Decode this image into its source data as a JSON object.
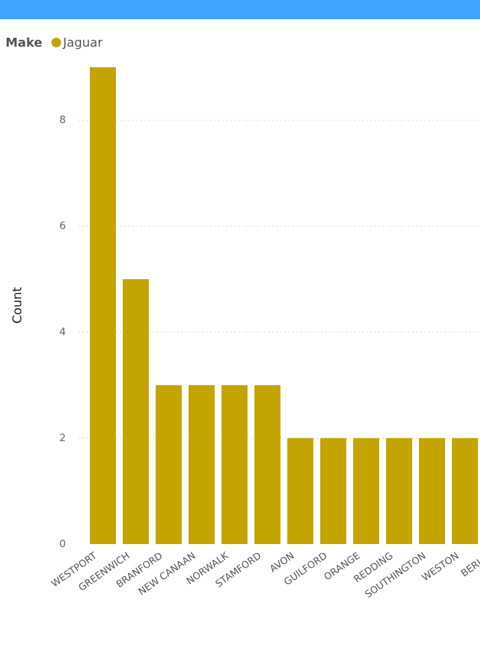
{
  "chart_data": {
    "type": "bar",
    "legend_title": "Make",
    "y_label": "Count",
    "categories": [
      "WESTPORT",
      "GREENWICH",
      "BRANFORD",
      "NEW CANAAN",
      "NORWALK",
      "STAMFORD",
      "AVON",
      "GUILFORD",
      "ORANGE",
      "REDDING",
      "SOUTHINGTON",
      "WESTON",
      "BERLIN"
    ],
    "series": [
      {
        "name": "Jaguar",
        "color": "#c4a500",
        "values": [
          9,
          5,
          3,
          3,
          3,
          3,
          2,
          2,
          2,
          2,
          2,
          2,
          2
        ]
      }
    ],
    "ylim": [
      0,
      9
    ],
    "yticks": [
      0,
      2,
      4,
      6,
      8
    ],
    "grid": true
  }
}
